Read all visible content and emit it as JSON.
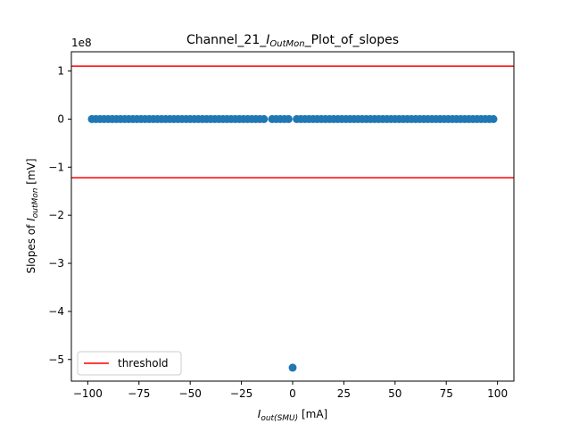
{
  "chart_data": {
    "type": "scatter",
    "title": {
      "prefix": "Channel_21_",
      "math_main": "I",
      "math_sub": "OutMon",
      "suffix": "_Plot_of_slopes"
    },
    "xlabel": {
      "math_main": "I",
      "math_sub": "out(SMU)",
      "suffix": " [mA]"
    },
    "ylabel": {
      "prefix": "Slopes of ",
      "math_main": "I",
      "math_sub": "outMon",
      "suffix": " [mV]"
    },
    "y_offset_text": "1e8",
    "xlim": [
      -108,
      108
    ],
    "ylim": [
      -5.45,
      1.4
    ],
    "x_ticks": [
      -100,
      -75,
      -50,
      -25,
      0,
      25,
      50,
      75,
      100
    ],
    "y_ticks": [
      -5,
      -4,
      -3,
      -2,
      -1,
      0,
      1
    ],
    "y_tick_labels": [
      "−5",
      "−4",
      "−3",
      "−2",
      "−1",
      "0",
      "1"
    ],
    "x_tick_labels": [
      "−100",
      "−75",
      "−50",
      "−25",
      "0",
      "25",
      "50",
      "75",
      "100"
    ],
    "series": [
      {
        "color": "#1f77b4",
        "x": [
          -98,
          -96,
          -94,
          -92,
          -90,
          -88,
          -86,
          -84,
          -82,
          -80,
          -78,
          -76,
          -74,
          -72,
          -70,
          -68,
          -66,
          -64,
          -62,
          -60,
          -58,
          -56,
          -54,
          -52,
          -50,
          -48,
          -46,
          -44,
          -42,
          -40,
          -38,
          -36,
          -34,
          -32,
          -30,
          -28,
          -26,
          -24,
          -22,
          -20,
          -18,
          -16,
          -14,
          -10,
          -8,
          -6,
          -4,
          -2,
          0,
          2,
          4,
          6,
          8,
          10,
          12,
          14,
          16,
          18,
          20,
          22,
          24,
          26,
          28,
          30,
          32,
          34,
          36,
          38,
          40,
          42,
          44,
          46,
          48,
          50,
          52,
          54,
          56,
          58,
          60,
          62,
          64,
          66,
          68,
          70,
          72,
          74,
          76,
          78,
          80,
          82,
          84,
          86,
          88,
          90,
          92,
          94,
          96,
          98
        ],
        "y": [
          0,
          0,
          0,
          0,
          0,
          0,
          0,
          0,
          0,
          0,
          0,
          0,
          0,
          0,
          0,
          0,
          0,
          0,
          0,
          0,
          0,
          0,
          0,
          0,
          0,
          0,
          0,
          0,
          0,
          0,
          0,
          0,
          0,
          0,
          0,
          0,
          0,
          0,
          0,
          0,
          0,
          0,
          0,
          0,
          0,
          0,
          0,
          0,
          -5.17,
          0,
          0,
          0,
          0,
          0,
          0,
          0,
          0,
          0,
          0,
          0,
          0,
          0,
          0,
          0,
          0,
          0,
          0,
          0,
          0,
          0,
          0,
          0,
          0,
          0,
          0,
          0,
          0,
          0,
          0,
          0,
          0,
          0,
          0,
          0,
          0,
          0,
          0,
          0,
          0,
          0,
          0,
          0,
          0,
          0,
          0,
          0,
          0,
          0
        ]
      }
    ],
    "thresholds": {
      "name": "threshold",
      "color": "#ff0000",
      "values": [
        1.1,
        -1.22
      ]
    },
    "legend": {
      "placement": "lower-left",
      "label": "threshold"
    },
    "grid": false
  }
}
